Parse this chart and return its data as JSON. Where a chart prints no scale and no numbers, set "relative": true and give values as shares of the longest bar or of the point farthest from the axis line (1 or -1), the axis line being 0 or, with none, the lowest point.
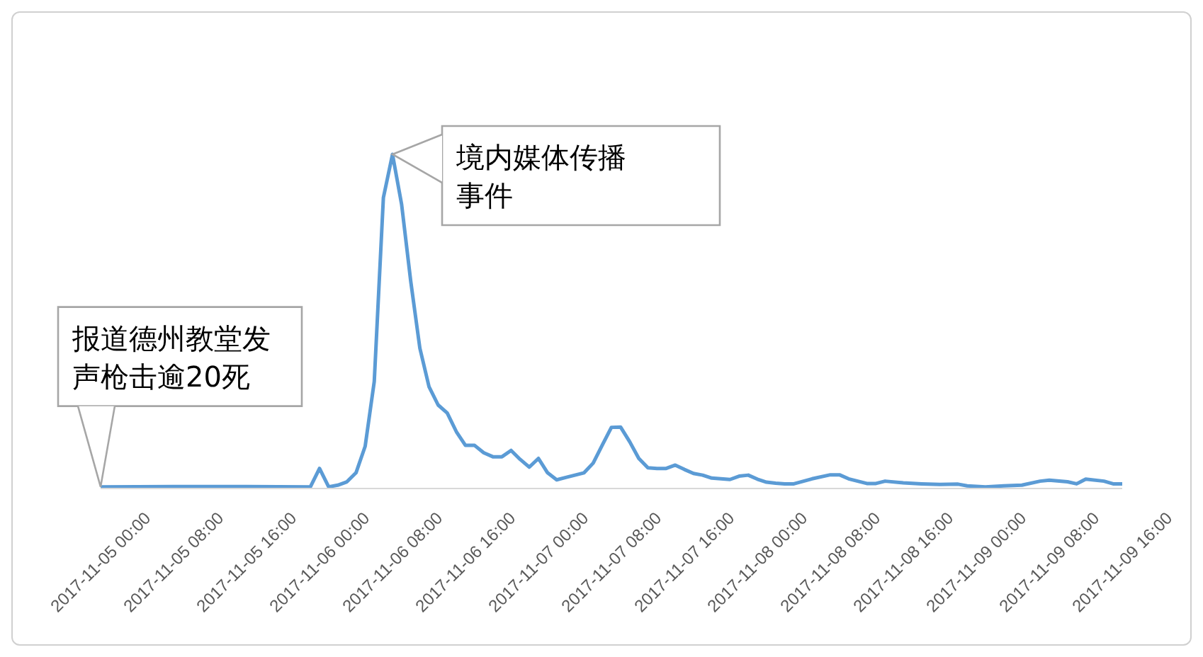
{
  "chart_data": {
    "type": "line",
    "relative": true,
    "color": "#5b9bd5",
    "marker": "none",
    "x": [
      "2017-11-05T00:00",
      "2017-11-05T08:00",
      "2017-11-05T16:00",
      "2017-11-05T23:00",
      "2017-11-06T00:00",
      "2017-11-06T01:00",
      "2017-11-06T02:00",
      "2017-11-06T03:00",
      "2017-11-06T04:00",
      "2017-11-06T05:00",
      "2017-11-06T06:00",
      "2017-11-06T07:00",
      "2017-11-06T08:00",
      "2017-11-06T09:00",
      "2017-11-06T10:00",
      "2017-11-06T11:00",
      "2017-11-06T12:00",
      "2017-11-06T13:00",
      "2017-11-06T14:00",
      "2017-11-06T15:00",
      "2017-11-06T16:00",
      "2017-11-06T17:00",
      "2017-11-06T18:00",
      "2017-11-06T19:00",
      "2017-11-06T20:00",
      "2017-11-06T21:00",
      "2017-11-06T22:00",
      "2017-11-06T23:00",
      "2017-11-07T00:00",
      "2017-11-07T01:00",
      "2017-11-07T02:00",
      "2017-11-07T03:00",
      "2017-11-07T04:00",
      "2017-11-07T05:00",
      "2017-11-07T06:00",
      "2017-11-07T07:00",
      "2017-11-07T08:00",
      "2017-11-07T09:00",
      "2017-11-07T10:00",
      "2017-11-07T11:00",
      "2017-11-07T12:00",
      "2017-11-07T13:00",
      "2017-11-07T14:00",
      "2017-11-07T15:00",
      "2017-11-07T16:00",
      "2017-11-07T17:00",
      "2017-11-07T18:00",
      "2017-11-07T19:00",
      "2017-11-07T20:00",
      "2017-11-07T21:00",
      "2017-11-07T22:00",
      "2017-11-07T23:00",
      "2017-11-08T00:00",
      "2017-11-08T01:00",
      "2017-11-08T02:00",
      "2017-11-08T03:00",
      "2017-11-08T04:00",
      "2017-11-08T06:00",
      "2017-11-08T08:00",
      "2017-11-08T09:00",
      "2017-11-08T10:00",
      "2017-11-08T12:00",
      "2017-11-08T13:00",
      "2017-11-08T14:00",
      "2017-11-08T16:00",
      "2017-11-08T18:00",
      "2017-11-08T20:00",
      "2017-11-08T22:00",
      "2017-11-08T23:00",
      "2017-11-09T01:00",
      "2017-11-09T03:00",
      "2017-11-09T05:00",
      "2017-11-09T07:00",
      "2017-11-09T08:00",
      "2017-11-09T10:00",
      "2017-11-09T11:00",
      "2017-11-09T12:00",
      "2017-11-09T14:00",
      "2017-11-09T15:00",
      "2017-11-09T16:00"
    ],
    "values": [
      0.005,
      0.006,
      0.006,
      0.005,
      0.06,
      0.005,
      0.01,
      0.02,
      0.047,
      0.126,
      0.32,
      0.87,
      1.0,
      0.85,
      0.62,
      0.42,
      0.305,
      0.25,
      0.226,
      0.17,
      0.129,
      0.129,
      0.107,
      0.095,
      0.095,
      0.114,
      0.087,
      0.064,
      0.09,
      0.047,
      0.026,
      0.033,
      0.04,
      0.047,
      0.076,
      0.13,
      0.183,
      0.184,
      0.14,
      0.09,
      0.062,
      0.06,
      0.06,
      0.07,
      0.057,
      0.045,
      0.04,
      0.031,
      0.029,
      0.027,
      0.037,
      0.04,
      0.028,
      0.019,
      0.016,
      0.014,
      0.014,
      0.029,
      0.041,
      0.041,
      0.029,
      0.015,
      0.015,
      0.022,
      0.017,
      0.014,
      0.012,
      0.013,
      0.008,
      0.005,
      0.008,
      0.01,
      0.022,
      0.025,
      0.02,
      0.014,
      0.028,
      0.022,
      0.014,
      0.014
    ],
    "xlim": [
      "2017-11-05T00:00",
      "2017-11-09T16:00"
    ],
    "xticks": [
      {
        "value": "2017-11-05T00:00",
        "label": "2017-11-05 00:00"
      },
      {
        "value": "2017-11-05T08:00",
        "label": "2017-11-05 08:00"
      },
      {
        "value": "2017-11-05T16:00",
        "label": "2017-11-05 16:00"
      },
      {
        "value": "2017-11-06T00:00",
        "label": "2017-11-06 00:00"
      },
      {
        "value": "2017-11-06T08:00",
        "label": "2017-11-06 08:00"
      },
      {
        "value": "2017-11-06T16:00",
        "label": "2017-11-06 16:00"
      },
      {
        "value": "2017-11-07T00:00",
        "label": "2017-11-07 00:00"
      },
      {
        "value": "2017-11-07T08:00",
        "label": "2017-11-07 08:00"
      },
      {
        "value": "2017-11-07T16:00",
        "label": "2017-11-07 16:00"
      },
      {
        "value": "2017-11-08T00:00",
        "label": "2017-11-08 00:00"
      },
      {
        "value": "2017-11-08T08:00",
        "label": "2017-11-08 08:00"
      },
      {
        "value": "2017-11-08T16:00",
        "label": "2017-11-08 16:00"
      },
      {
        "value": "2017-11-09T00:00",
        "label": "2017-11-09 00:00"
      },
      {
        "value": "2017-11-09T08:00",
        "label": "2017-11-09 08:00"
      },
      {
        "value": "2017-11-09T16:00",
        "label": "2017-11-09 16:00"
      }
    ],
    "annotations": [
      {
        "text": "报道德州教堂发声枪击逾20死",
        "x": "2017-11-05T00:00",
        "y": 0.005
      },
      {
        "text": "境内媒体传播事件",
        "x": "2017-11-06T08:00",
        "y": 1.0
      }
    ]
  }
}
